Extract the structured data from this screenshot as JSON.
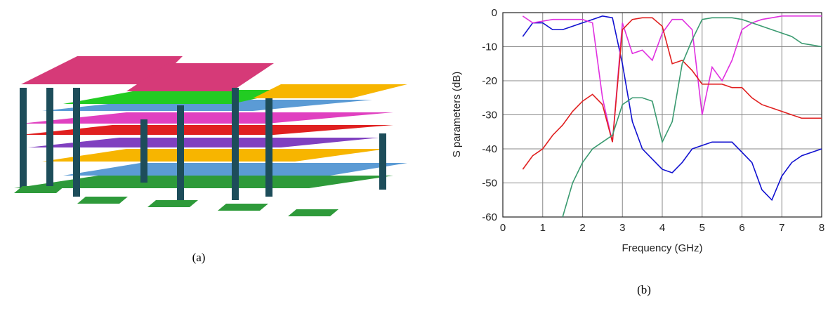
{
  "figure": {
    "panel_a_caption": "(a)",
    "panel_b_caption": "(b)"
  },
  "chart_data": {
    "type": "line",
    "x_label": "Frequency (GHz)",
    "y_label": "S parameters (dB)",
    "x": [
      0.5,
      0.75,
      1,
      1.25,
      1.5,
      1.75,
      2,
      2.25,
      2.5,
      2.75,
      3,
      3.25,
      3.5,
      3.75,
      4,
      4.25,
      4.5,
      4.75,
      5,
      5.25,
      5.5,
      5.75,
      6,
      6.25,
      6.5,
      6.75,
      7,
      7.25,
      7.5,
      7.75,
      8
    ],
    "series": [
      {
        "color": "#1010d0",
        "values": [
          -7,
          -3,
          -3,
          -5,
          -5,
          -4,
          -3,
          -2,
          -1,
          -1.5,
          -15,
          -32,
          -40,
          -43,
          -46,
          -47,
          -44,
          -40,
          -39,
          -38,
          -38,
          -38,
          -41,
          -44,
          -52,
          -55,
          -48,
          -44,
          -42,
          -41,
          -40
        ]
      },
      {
        "color": "#e030e0",
        "values": [
          -1,
          -3,
          -2.5,
          -2,
          -2,
          -2,
          -2,
          -3,
          -25,
          -38,
          -3,
          -12,
          -11,
          -14,
          -6,
          -2,
          -2,
          -5,
          -30,
          -16,
          -20,
          -14,
          -5,
          -3,
          -2,
          -1.5,
          -1,
          -1,
          -1,
          -1,
          -1
        ]
      },
      {
        "color": "#e02020",
        "values": [
          -46,
          -42,
          -40,
          -36,
          -33,
          -29,
          -26,
          -24,
          -27,
          -38,
          -5,
          -2,
          -1.5,
          -1.5,
          -4,
          -15,
          -14,
          -17,
          -21,
          -21,
          -21,
          -22,
          -22,
          -25,
          -27,
          -28,
          -29,
          -30,
          -31,
          -31,
          -31
        ]
      },
      {
        "color": "#3a9a70",
        "values": [
          null,
          null,
          null,
          null,
          -60,
          -50,
          -44,
          -40,
          -38,
          -36,
          -27,
          -25,
          -25,
          -26,
          -38,
          -32,
          -15,
          -8,
          -2,
          -1.5,
          -1.5,
          -1.5,
          -2,
          -3,
          -4,
          -5,
          -6,
          -7,
          -9,
          -9.5,
          -10
        ]
      }
    ],
    "xlim": [
      0,
      8
    ],
    "ylim": [
      -60,
      0
    ],
    "xticks": [
      0,
      1,
      2,
      3,
      4,
      5,
      6,
      7,
      8
    ],
    "yticks": [
      0,
      -10,
      -20,
      -30,
      -40,
      -50,
      -60
    ],
    "grid": true
  }
}
